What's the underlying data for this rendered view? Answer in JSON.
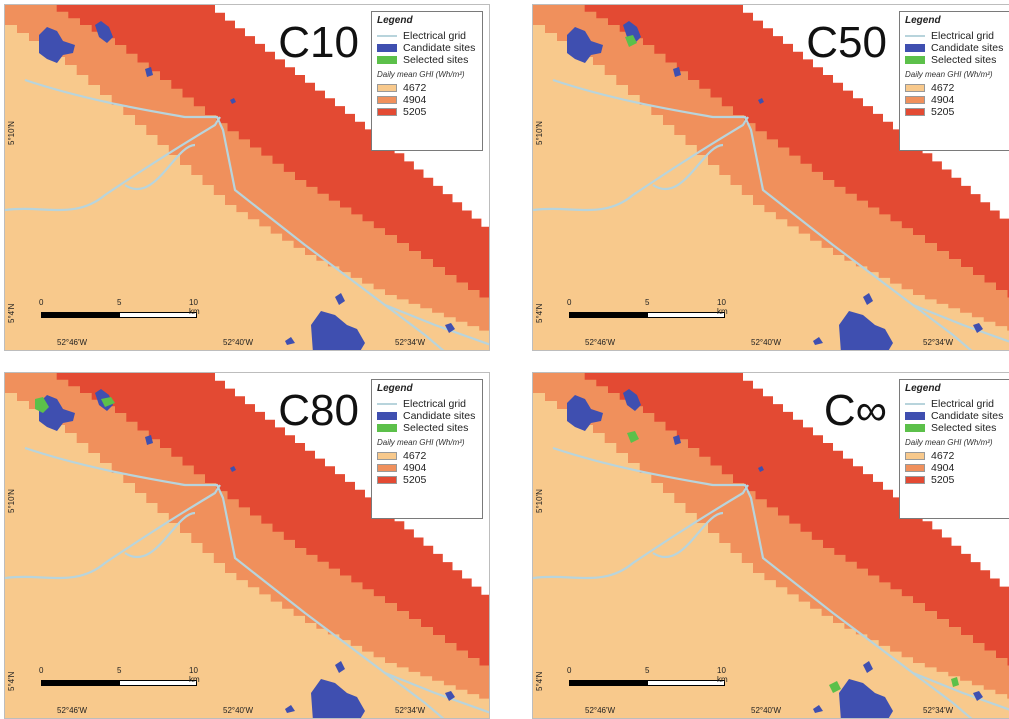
{
  "panels": [
    {
      "id": "C10",
      "label": "C10"
    },
    {
      "id": "C50",
      "label": "C50"
    },
    {
      "id": "C80",
      "label": "C80"
    },
    {
      "id": "Cinf",
      "label": "C∞"
    }
  ],
  "legend": {
    "title": "Legend",
    "items": [
      "Electrical grid",
      "Candidate sites",
      "Selected sites"
    ],
    "subtitle": "Daily mean GHI (Wh/m²)",
    "ghi_classes": [
      "4672",
      "4904",
      "5205"
    ]
  },
  "axes": {
    "lat_labels": [
      "5°10'N",
      "5°4'N"
    ],
    "lon_labels": [
      "52°46'W",
      "52°40'W",
      "52°34'W"
    ]
  },
  "scalebar": {
    "ticks": [
      "0",
      "5",
      "10 km"
    ]
  },
  "colors": {
    "ghi_low": "#f8c98c",
    "ghi_mid": "#f0905c",
    "ghi_high": "#e34a33",
    "candidate": "#3f4fb0",
    "selected": "#5cc04a",
    "grid_line": "#b8d4dc"
  }
}
